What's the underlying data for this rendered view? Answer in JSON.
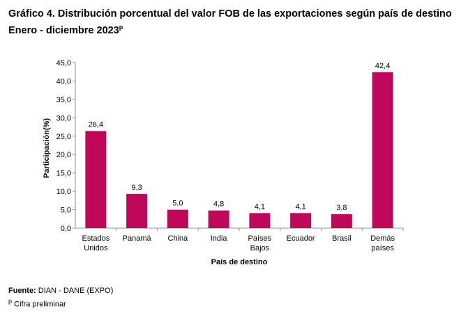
{
  "header": {
    "title_line1": "Gráfico 4. Distribución porcentual del valor FOB de las exportaciones según país de destino",
    "title_line2": "Enero - diciembre 2023",
    "title_sup": "p"
  },
  "chart_data": {
    "type": "bar",
    "title": "Gráfico 4. Distribución porcentual del valor FOB de las exportaciones según país de destino",
    "subtitle": "Enero - diciembre 2023p",
    "categories": [
      [
        "Estados",
        "Unidos"
      ],
      [
        "Panamá"
      ],
      [
        "China"
      ],
      [
        "India"
      ],
      [
        "Países",
        "Bajos"
      ],
      [
        "Ecuador"
      ],
      [
        "Brasil"
      ],
      [
        "Demás",
        "países"
      ]
    ],
    "values": [
      26.4,
      9.3,
      5.0,
      4.8,
      4.1,
      4.1,
      3.8,
      42.4
    ],
    "value_labels": [
      "26,4",
      "9,3",
      "5,0",
      "4,8",
      "4,1",
      "4,1",
      "3,8",
      "42,4"
    ],
    "xlabel": "País de destino",
    "ylabel": "Participación(%)",
    "ylim": [
      0,
      45
    ],
    "yticks": [
      "0,0",
      "5,0",
      "10,0",
      "15,0",
      "20,0",
      "25,0",
      "30,0",
      "35,0",
      "40,0",
      "45,0"
    ],
    "bar_color": "#c0085a",
    "grid": false
  },
  "footer": {
    "source_label": "Fuente:",
    "source_text": " DIAN - DANE (EXPO)",
    "note_sup": "p",
    "note_text": " Cifra preliminar"
  }
}
